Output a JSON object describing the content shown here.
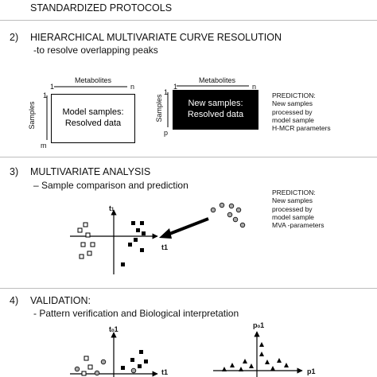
{
  "header": {
    "title": "STANDARDIZED PROTOCOLS"
  },
  "section2": {
    "number": "2)",
    "title": "HIERARCHICAL MULTIVARIATE CURVE RESOLUTION",
    "subtitle": "-to resolve overlapping peaks",
    "left_matrix": {
      "col_label": "Metabolites",
      "row_label": "Samples",
      "col_start": "1",
      "col_end": "n",
      "row_start": "1",
      "row_end": "m",
      "box_line1": "Model samples:",
      "box_line2": "Resolved data"
    },
    "right_matrix": {
      "col_label": "Metabolites",
      "row_label": "Samples",
      "col_start": "1",
      "col_end": "n",
      "row_start": "1",
      "row_end": "p",
      "box_line1": "New samples:",
      "box_line2": "Resolved data"
    },
    "prediction": "PREDICTION:\nNew samples\nprocessed by\nmodel sample\nH-MCR parameters"
  },
  "section3": {
    "number": "3)",
    "title": "MULTIVARIATE ANALYSIS",
    "subtitle": "– Sample comparison and prediction",
    "y_axis": "t",
    "y_axis_sub": "1",
    "x_axis": "t1",
    "prediction": "PREDICTION:\nNew samples\nprocessed by\nmodel sample\nMVA -parameters"
  },
  "section4": {
    "number": "4)",
    "title": "VALIDATION:",
    "subtitle": "- Pattern verification and Biological interpretation",
    "left_y_axis": "t",
    "left_y_sub": "o",
    "left_y_num": "1",
    "left_x_axis": "t1",
    "right_y_axis": "p",
    "right_y_sub": "o",
    "right_y_num": "1",
    "right_x_axis": "p1"
  }
}
